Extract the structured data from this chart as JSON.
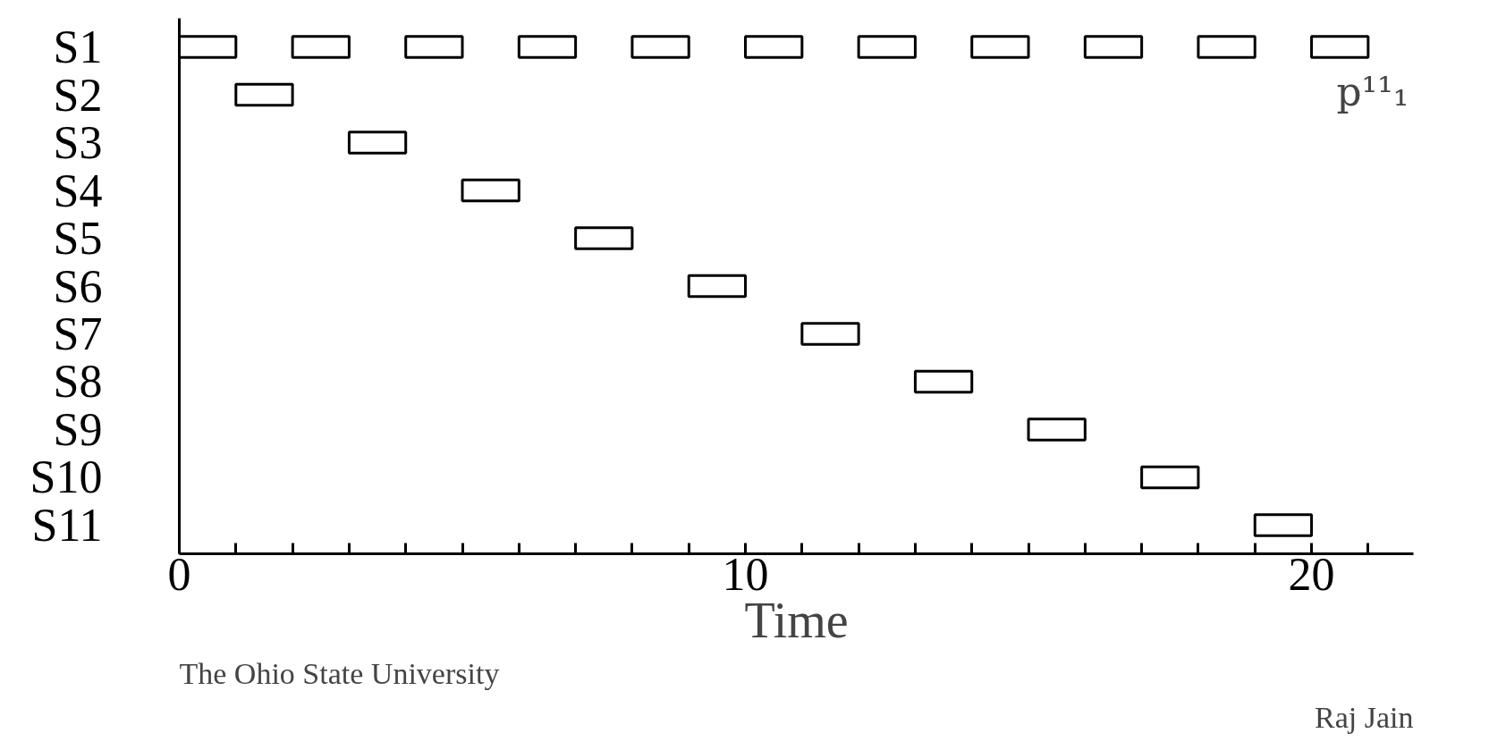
{
  "chart_data": {
    "type": "bar",
    "orientation": "horizontal",
    "xlabel": "Time",
    "categories": [
      "S1",
      "S2",
      "S3",
      "S4",
      "S5",
      "S6",
      "S7",
      "S8",
      "S9",
      "S10",
      "S11"
    ],
    "series": [
      {
        "color": "#000000",
        "values": [
          1,
          1,
          1,
          1,
          1,
          1,
          1,
          1,
          1,
          1,
          1
        ],
        "base": [
          0,
          1,
          3,
          5,
          7,
          9,
          11,
          13,
          15,
          17,
          19
        ]
      },
      {
        "color": "#000000",
        "values": [
          1,
          null,
          null,
          null,
          null,
          null,
          null,
          null,
          null,
          null,
          null
        ],
        "base": [
          2,
          null,
          null,
          null,
          null,
          null,
          null,
          null,
          null,
          null,
          null
        ]
      },
      {
        "color": "#000000",
        "values": [
          1,
          null,
          null,
          null,
          null,
          null,
          null,
          null,
          null,
          null,
          null
        ],
        "base": [
          4,
          null,
          null,
          null,
          null,
          null,
          null,
          null,
          null,
          null,
          null
        ]
      },
      {
        "color": "#000000",
        "values": [
          1,
          null,
          null,
          null,
          null,
          null,
          null,
          null,
          null,
          null,
          null
        ],
        "base": [
          6,
          null,
          null,
          null,
          null,
          null,
          null,
          null,
          null,
          null,
          null
        ]
      },
      {
        "color": "#000000",
        "values": [
          1,
          null,
          null,
          null,
          null,
          null,
          null,
          null,
          null,
          null,
          null
        ],
        "base": [
          8,
          null,
          null,
          null,
          null,
          null,
          null,
          null,
          null,
          null,
          null
        ]
      },
      {
        "color": "#000000",
        "values": [
          1,
          null,
          null,
          null,
          null,
          null,
          null,
          null,
          null,
          null,
          null
        ],
        "base": [
          10,
          null,
          null,
          null,
          null,
          null,
          null,
          null,
          null,
          null,
          null
        ]
      },
      {
        "color": "#000000",
        "values": [
          1,
          null,
          null,
          null,
          null,
          null,
          null,
          null,
          null,
          null,
          null
        ],
        "base": [
          12,
          null,
          null,
          null,
          null,
          null,
          null,
          null,
          null,
          null,
          null
        ]
      },
      {
        "color": "#000000",
        "values": [
          1,
          null,
          null,
          null,
          null,
          null,
          null,
          null,
          null,
          null,
          null
        ],
        "base": [
          14,
          null,
          null,
          null,
          null,
          null,
          null,
          null,
          null,
          null,
          null
        ]
      },
      {
        "color": "#000000",
        "values": [
          1,
          null,
          null,
          null,
          null,
          null,
          null,
          null,
          null,
          null,
          null
        ],
        "base": [
          16,
          null,
          null,
          null,
          null,
          null,
          null,
          null,
          null,
          null,
          null
        ]
      },
      {
        "color": "#000000",
        "values": [
          1,
          null,
          null,
          null,
          null,
          null,
          null,
          null,
          null,
          null,
          null
        ],
        "base": [
          18,
          null,
          null,
          null,
          null,
          null,
          null,
          null,
          null,
          null,
          null
        ]
      },
      {
        "color": "#000000",
        "values": [
          1,
          null,
          null,
          null,
          null,
          null,
          null,
          null,
          null,
          null,
          null
        ],
        "base": [
          20,
          null,
          null,
          null,
          null,
          null,
          null,
          null,
          null,
          null,
          null
        ]
      }
    ],
    "xlim": [
      0,
      21.8
    ],
    "xticks": [
      0,
      {
        "value": 1,
        "label": null
      },
      {
        "value": 2,
        "label": null
      },
      {
        "value": 3,
        "label": null
      },
      {
        "value": 4,
        "label": null
      },
      {
        "value": 5,
        "label": null
      },
      {
        "value": 6,
        "label": null
      },
      {
        "value": 7,
        "label": null
      },
      {
        "value": 8,
        "label": null
      },
      {
        "value": 9,
        "label": null
      },
      10,
      {
        "value": 11,
        "label": null
      },
      {
        "value": 12,
        "label": null
      },
      {
        "value": 13,
        "label": null
      },
      {
        "value": 14,
        "label": null
      },
      {
        "value": 15,
        "label": null
      },
      {
        "value": 16,
        "label": null
      },
      {
        "value": 17,
        "label": null
      },
      {
        "value": 18,
        "label": null
      },
      {
        "value": 19,
        "label": null
      },
      20,
      {
        "value": 21,
        "label": null
      }
    ],
    "annotations": [
      "p¹¹₁",
      "The Ohio State University",
      "Raj Jain"
    ],
    "grid": false
  }
}
